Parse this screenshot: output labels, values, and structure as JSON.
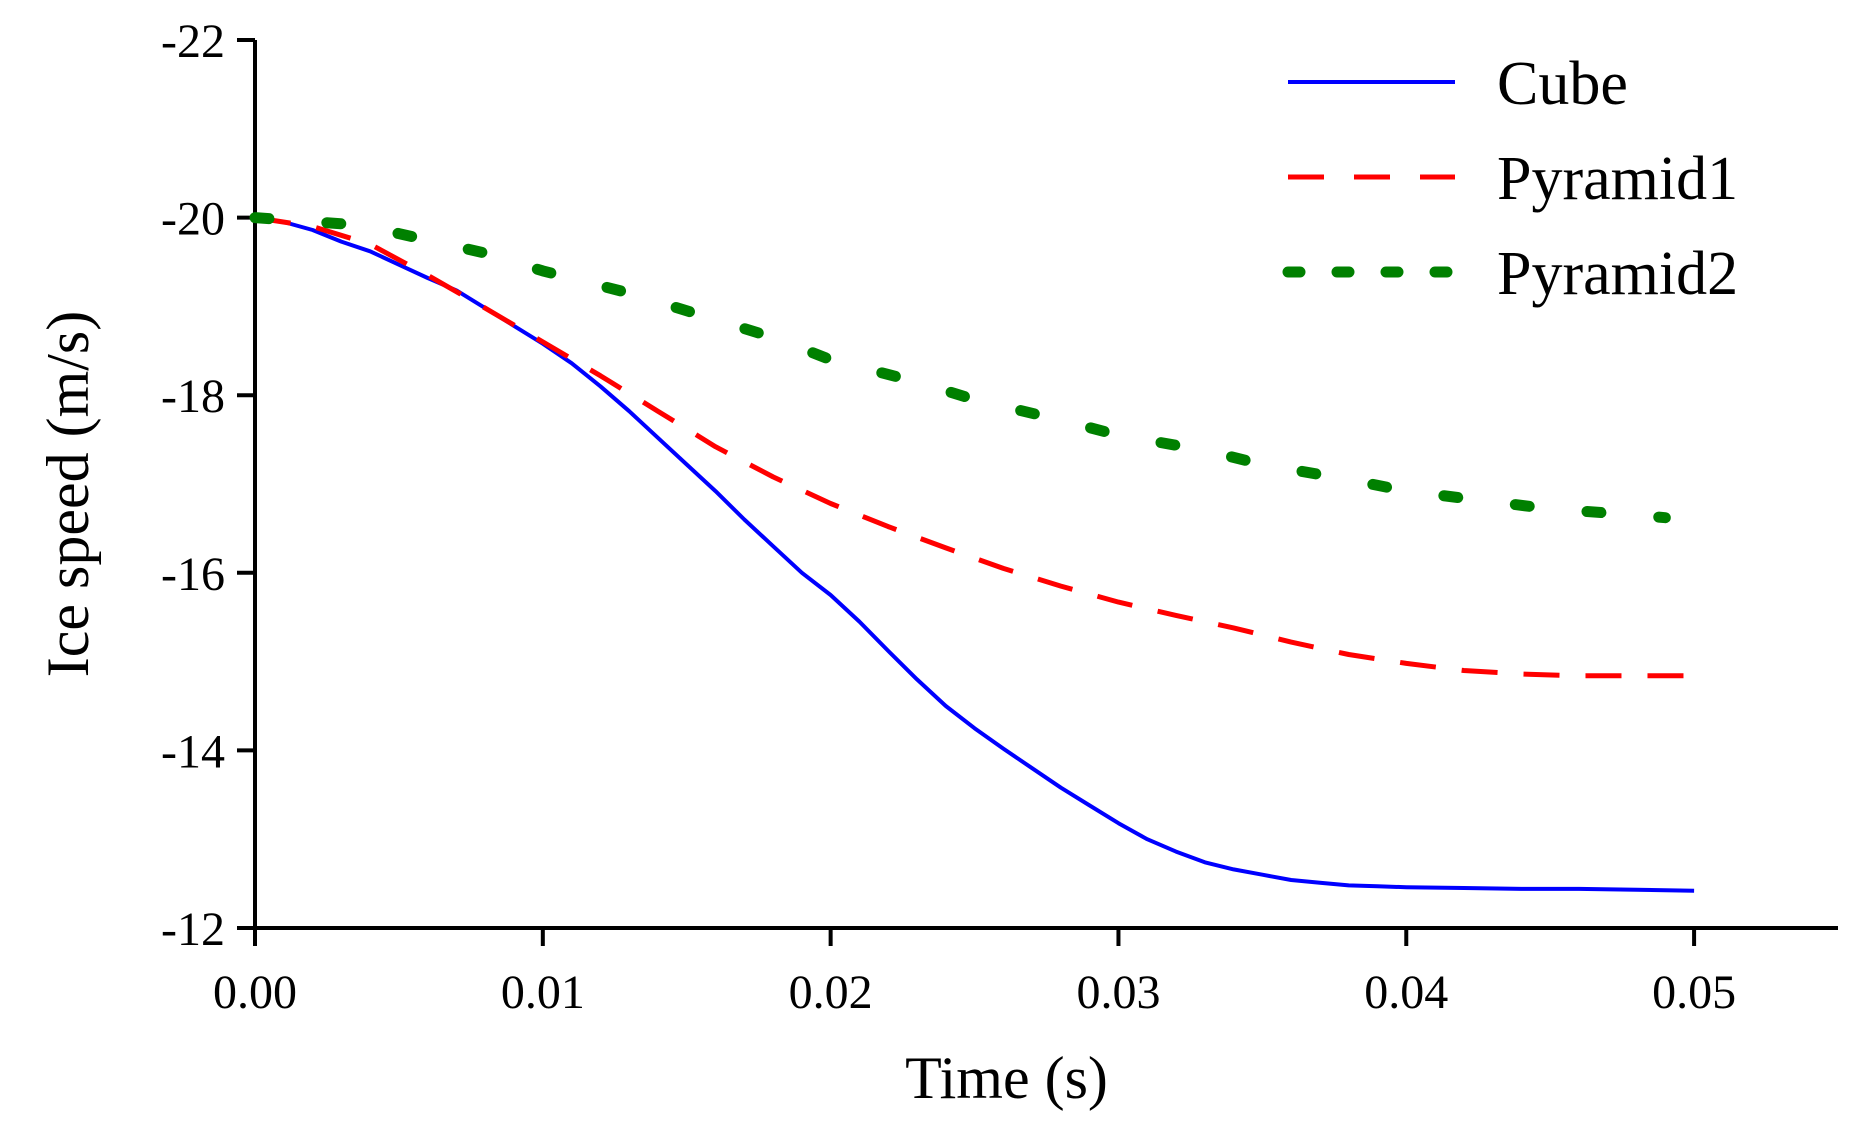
{
  "chart_data": {
    "type": "line",
    "title": "",
    "xlabel": "Time (s)",
    "ylabel": "Ice speed (m/s)",
    "xlim": [
      0,
      0.055
    ],
    "ylim": [
      -12,
      -22
    ],
    "y_axis_inverted": true,
    "grid": false,
    "legend_position": "top-right",
    "x_ticks": [
      {
        "value": 0.0,
        "label": "0.00"
      },
      {
        "value": 0.01,
        "label": "0.01"
      },
      {
        "value": 0.02,
        "label": "0.02"
      },
      {
        "value": 0.03,
        "label": "0.03"
      },
      {
        "value": 0.04,
        "label": "0.04"
      },
      {
        "value": 0.05,
        "label": "0.05"
      }
    ],
    "y_ticks": [
      {
        "value": -22,
        "label": "-22"
      },
      {
        "value": -20,
        "label": "-20"
      },
      {
        "value": -18,
        "label": "-18"
      },
      {
        "value": -16,
        "label": "-16"
      },
      {
        "value": -14,
        "label": "-14"
      },
      {
        "value": -12,
        "label": "-12"
      }
    ],
    "series": [
      {
        "name": "Cube",
        "color": "#0000ff",
        "style": "solid",
        "x": [
          0,
          0.001,
          0.002,
          0.003,
          0.004,
          0.005,
          0.006,
          0.007,
          0.008,
          0.009,
          0.01,
          0.011,
          0.012,
          0.013,
          0.014,
          0.015,
          0.016,
          0.017,
          0.018,
          0.019,
          0.02,
          0.021,
          0.022,
          0.023,
          0.024,
          0.025,
          0.026,
          0.027,
          0.028,
          0.029,
          0.03,
          0.031,
          0.032,
          0.033,
          0.034,
          0.035,
          0.036,
          0.037,
          0.038,
          0.039,
          0.04,
          0.042,
          0.044,
          0.046,
          0.048,
          0.05
        ],
        "y": [
          -20.0,
          -19.95,
          -19.86,
          -19.73,
          -19.62,
          -19.47,
          -19.32,
          -19.18,
          -18.98,
          -18.78,
          -18.58,
          -18.36,
          -18.1,
          -17.82,
          -17.52,
          -17.22,
          -16.92,
          -16.6,
          -16.3,
          -16.0,
          -15.75,
          -15.45,
          -15.12,
          -14.8,
          -14.5,
          -14.25,
          -14.02,
          -13.8,
          -13.58,
          -13.38,
          -13.18,
          -13.0,
          -12.86,
          -12.74,
          -12.66,
          -12.6,
          -12.54,
          -12.51,
          -12.48,
          -12.47,
          -12.46,
          -12.45,
          -12.44,
          -12.44,
          -12.43,
          -12.42
        ]
      },
      {
        "name": "Pyramid1",
        "color": "#ff0000",
        "style": "dashed",
        "x": [
          0,
          0.002,
          0.004,
          0.006,
          0.008,
          0.01,
          0.012,
          0.014,
          0.016,
          0.018,
          0.02,
          0.022,
          0.024,
          0.026,
          0.028,
          0.03,
          0.032,
          0.034,
          0.036,
          0.038,
          0.04,
          0.042,
          0.044,
          0.046,
          0.048,
          0.05
        ],
        "y": [
          -20.0,
          -19.9,
          -19.7,
          -19.35,
          -18.98,
          -18.6,
          -18.22,
          -17.82,
          -17.42,
          -17.08,
          -16.78,
          -16.52,
          -16.28,
          -16.05,
          -15.85,
          -15.67,
          -15.52,
          -15.38,
          -15.22,
          -15.08,
          -14.98,
          -14.9,
          -14.86,
          -14.84,
          -14.84,
          -14.84
        ]
      },
      {
        "name": "Pyramid2",
        "color": "#008000",
        "style": "dotted",
        "x": [
          0,
          0.003,
          0.005,
          0.008,
          0.01,
          0.013,
          0.015,
          0.018,
          0.02,
          0.023,
          0.025,
          0.028,
          0.03,
          0.033,
          0.035,
          0.038,
          0.04,
          0.043,
          0.045,
          0.048,
          0.049
        ],
        "y": [
          -20.0,
          -19.93,
          -19.82,
          -19.6,
          -19.4,
          -19.15,
          -18.95,
          -18.65,
          -18.4,
          -18.15,
          -17.95,
          -17.72,
          -17.55,
          -17.38,
          -17.22,
          -17.05,
          -16.92,
          -16.8,
          -16.72,
          -16.65,
          -16.62
        ]
      }
    ]
  }
}
